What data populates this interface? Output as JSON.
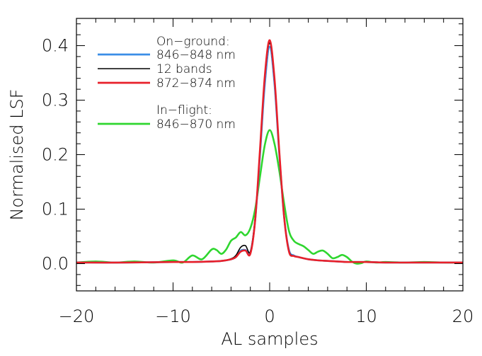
{
  "chart_data": {
    "type": "line",
    "title": "",
    "xlabel": "AL samples",
    "ylabel": "Normalised LSF",
    "xlim": [
      -20,
      20
    ],
    "ylim": [
      -0.05,
      0.45
    ],
    "xticks": [
      -20,
      -10,
      0,
      10,
      20
    ],
    "xtick_labels": [
      "−20",
      "−10",
      "0",
      "10",
      "20"
    ],
    "yticks": [
      0.0,
      0.1,
      0.2,
      0.3,
      0.4
    ],
    "ytick_labels": [
      "0.0",
      "0.1",
      "0.2",
      "0.3",
      "0.4"
    ],
    "grid": false,
    "legend": {
      "position": "top-left",
      "groups": [
        {
          "heading": "On−ground:",
          "entries": [
            {
              "name": "846−848 nm",
              "color": "#3a8ee6"
            },
            {
              "name": "12 bands",
              "color": "#000000"
            },
            {
              "name": "872−874 nm",
              "color": "#e8202a"
            }
          ]
        },
        {
          "heading": "In−flight:",
          "entries": [
            {
              "name": "846−870 nm",
              "color": "#2fd62f"
            }
          ]
        }
      ]
    },
    "series": [
      {
        "name": "846−848 nm",
        "color": "#3a8ee6",
        "peak": 0.398,
        "x": [
          -20,
          -15,
          -10,
          -8,
          -6,
          -5,
          -4,
          -3.5,
          -3,
          -2.5,
          -2,
          -1.5,
          -1,
          -0.5,
          0,
          0.5,
          1,
          1.5,
          2,
          2.5,
          3,
          4,
          5,
          6,
          7,
          8,
          9,
          10,
          12,
          15,
          20
        ],
        "y": [
          0.002,
          0.002,
          0.003,
          0.003,
          0.004,
          0.005,
          0.008,
          0.012,
          0.024,
          0.025,
          0.02,
          0.08,
          0.2,
          0.33,
          0.398,
          0.33,
          0.2,
          0.085,
          0.025,
          0.015,
          0.012,
          0.008,
          0.006,
          0.005,
          0.004,
          0.003,
          0.003,
          0.003,
          0.002,
          0.002,
          0.002
        ]
      },
      {
        "name": "12 bands",
        "color": "#000000",
        "peak": 0.405,
        "x": [
          -20,
          -15,
          -10,
          -8,
          -6,
          -5,
          -4,
          -3.5,
          -3,
          -2.5,
          -2,
          -1.5,
          -1,
          -0.5,
          0,
          0.5,
          1,
          1.5,
          2,
          2.5,
          3,
          4,
          5,
          6,
          7,
          8,
          9,
          10,
          12,
          15,
          20
        ],
        "y": [
          0.002,
          0.002,
          0.003,
          0.003,
          0.004,
          0.005,
          0.009,
          0.015,
          0.03,
          0.033,
          0.022,
          0.085,
          0.205,
          0.34,
          0.405,
          0.335,
          0.2,
          0.085,
          0.024,
          0.014,
          0.012,
          0.008,
          0.006,
          0.005,
          0.004,
          0.003,
          0.003,
          0.003,
          0.002,
          0.002,
          0.002
        ]
      },
      {
        "name": "872−874 nm",
        "color": "#e8202a",
        "peak": 0.41,
        "x": [
          -20,
          -15,
          -10,
          -8,
          -6,
          -5,
          -4,
          -3.5,
          -3,
          -2.5,
          -2,
          -1.5,
          -1,
          -0.5,
          0,
          0.5,
          1,
          1.5,
          2,
          2.5,
          3,
          4,
          5,
          6,
          7,
          8,
          9,
          10,
          12,
          15,
          20
        ],
        "y": [
          0.002,
          0.002,
          0.003,
          0.003,
          0.004,
          0.005,
          0.008,
          0.012,
          0.022,
          0.024,
          0.018,
          0.08,
          0.21,
          0.345,
          0.41,
          0.34,
          0.205,
          0.085,
          0.022,
          0.014,
          0.012,
          0.008,
          0.006,
          0.005,
          0.004,
          0.003,
          0.003,
          0.003,
          0.002,
          0.002,
          0.002
        ]
      },
      {
        "name": "846−870 nm",
        "color": "#2fd62f",
        "peak": 0.245,
        "x": [
          -20,
          -18,
          -16,
          -14,
          -12,
          -10,
          -9,
          -8,
          -7,
          -6,
          -5.5,
          -5,
          -4.5,
          -4,
          -3.5,
          -3,
          -2.5,
          -2,
          -1.5,
          -1,
          -0.5,
          0,
          0.5,
          1,
          1.5,
          2,
          2.5,
          3,
          3.5,
          4,
          4.5,
          5,
          5.5,
          6,
          6.5,
          7,
          7.5,
          8,
          8.5,
          9,
          9.5,
          10,
          11,
          12,
          14,
          16,
          18,
          20
        ],
        "y": [
          0.002,
          0.004,
          0.002,
          0.004,
          0.002,
          0.006,
          0.002,
          0.015,
          0.008,
          0.026,
          0.025,
          0.018,
          0.026,
          0.042,
          0.048,
          0.058,
          0.052,
          0.065,
          0.1,
          0.16,
          0.218,
          0.245,
          0.22,
          0.17,
          0.11,
          0.06,
          0.042,
          0.036,
          0.032,
          0.025,
          0.018,
          0.022,
          0.024,
          0.018,
          0.01,
          0.012,
          0.016,
          0.012,
          0.004,
          0.0,
          0.001,
          0.004,
          0.002,
          0.003,
          0.002,
          0.003,
          0.002,
          0.002
        ]
      }
    ]
  }
}
